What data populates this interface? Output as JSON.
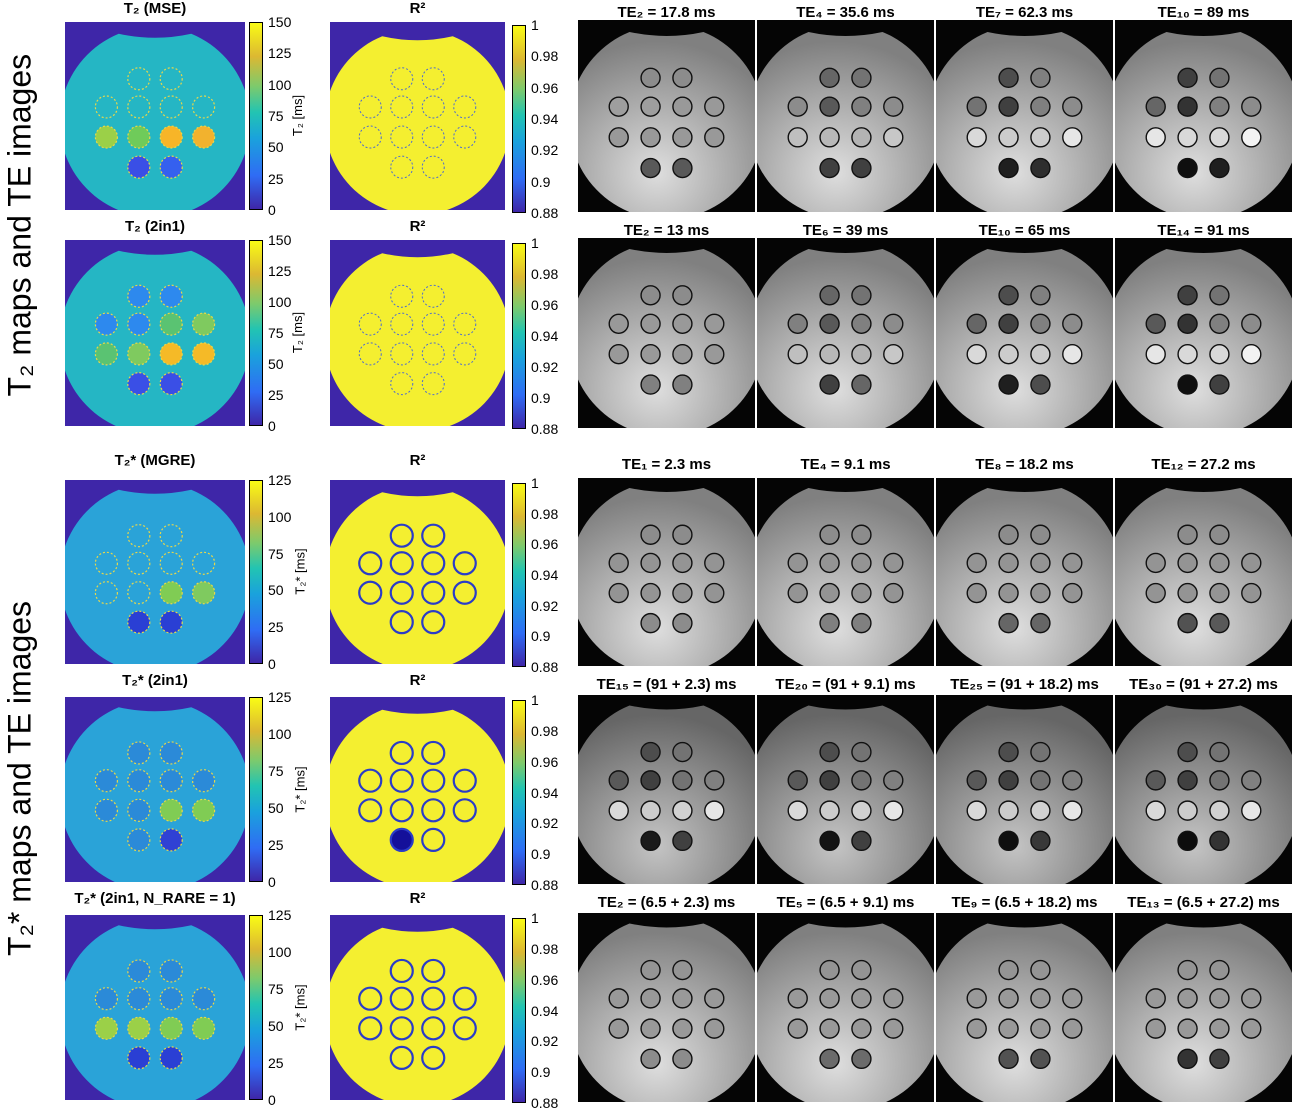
{
  "side_labels": {
    "top": "T₂ maps and TE images",
    "bottom": "T₂* maps and TE images"
  },
  "colorbar_units": {
    "t2": "T₂ [ms]",
    "t2s": "T₂* [ms]"
  },
  "rows": [
    {
      "map_title": "T₂ (MSE)",
      "r2_title": "R²",
      "map_ticks": [
        "150",
        "125",
        "100",
        "75",
        "50",
        "25",
        "0"
      ],
      "r2_ticks": [
        "1",
        "0.98",
        "0.96",
        "0.94",
        "0.92",
        "0.9",
        "0.88"
      ],
      "te_titles": [
        "TE₂ = 17.8 ms",
        "TE₄ = 35.6 ms",
        "TE₇ = 62.3 ms",
        "TE₁₀ = 89 ms"
      ]
    },
    {
      "map_title": "T₂ (2in1)",
      "r2_title": "R²",
      "map_ticks": [
        "150",
        "125",
        "100",
        "75",
        "50",
        "25",
        "0"
      ],
      "r2_ticks": [
        "1",
        "0.98",
        "0.96",
        "0.94",
        "0.92",
        "0.9",
        "0.88"
      ],
      "te_titles": [
        "TE₂ = 13 ms",
        "TE₆ = 39 ms",
        "TE₁₀ =  65 ms",
        "TE₁₄ = 91 ms"
      ]
    },
    {
      "map_title": "T₂* (MGRE)",
      "r2_title": "R²",
      "map_ticks": [
        "125",
        "100",
        "75",
        "50",
        "25",
        "0"
      ],
      "r2_ticks": [
        "1",
        "0.98",
        "0.96",
        "0.94",
        "0.92",
        "0.9",
        "0.88"
      ],
      "te_titles": [
        "TE₁ = 2.3 ms",
        "TE₄ = 9.1 ms",
        "TE₈ = 18.2 ms",
        "TE₁₂ = 27.2 ms"
      ]
    },
    {
      "map_title": "T₂* (2in1)",
      "r2_title": "R²",
      "map_ticks": [
        "125",
        "100",
        "75",
        "50",
        "25",
        "0"
      ],
      "r2_ticks": [
        "1",
        "0.98",
        "0.96",
        "0.94",
        "0.92",
        "0.9",
        "0.88"
      ],
      "te_titles": [
        "TE₁₅ = (91 + 2.3) ms",
        "TE₂₀ = (91 + 9.1) ms",
        "TE₂₅ = (91 + 18.2) ms",
        "TE₃₀ = (91 + 27.2) ms"
      ]
    },
    {
      "map_title": "T₂* (2in1, N_RARE = 1)",
      "r2_title": "R²",
      "map_ticks": [
        "125",
        "100",
        "75",
        "50",
        "25",
        "0"
      ],
      "r2_ticks": [
        "1",
        "0.98",
        "0.96",
        "0.94",
        "0.92",
        "0.9",
        "0.88"
      ],
      "te_titles": [
        "TE₂ = (6.5 + 2.3) ms",
        "TE₅ = (6.5 + 9.1) ms",
        "TE₉ = (6.5 + 18.2) ms",
        "TE₁₃ = (6.5 + 27.2) ms"
      ]
    }
  ],
  "colors": {
    "map_background": "#3e26a8",
    "phantom_cyan": "#25b6c4",
    "r2_yellow": "#f4ef30",
    "colormap": "parula"
  }
}
